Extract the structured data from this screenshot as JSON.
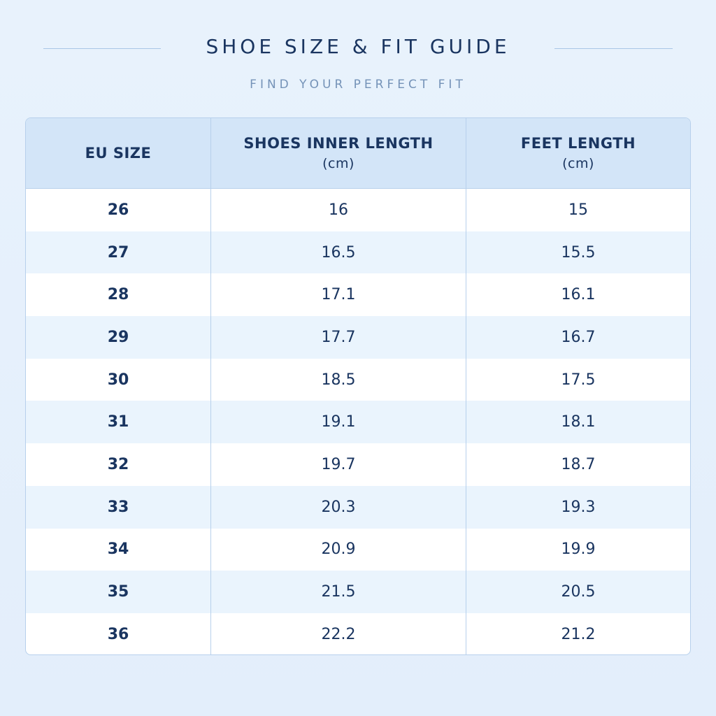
{
  "header": {
    "title": "SHOE SIZE & FIT GUIDE",
    "subtitle": "FIND YOUR PERFECT FIT"
  },
  "table": {
    "columns": [
      {
        "label": "EU SIZE"
      },
      {
        "label": "SHOES INNER LENGTH",
        "unit": "(cm)"
      },
      {
        "label": "FEET LENGTH",
        "unit": "(cm)"
      }
    ],
    "rows": [
      [
        "26",
        "16",
        "15"
      ],
      [
        "27",
        "16.5",
        "15.5"
      ],
      [
        "28",
        "17.1",
        "16.1"
      ],
      [
        "29",
        "17.7",
        "16.7"
      ],
      [
        "30",
        "18.5",
        "17.5"
      ],
      [
        "31",
        "19.1",
        "18.1"
      ],
      [
        "32",
        "19.7",
        "18.7"
      ],
      [
        "33",
        "20.3",
        "19.3"
      ],
      [
        "34",
        "20.9",
        "19.9"
      ],
      [
        "35",
        "21.5",
        "20.5"
      ],
      [
        "36",
        "22.2",
        "21.2"
      ]
    ]
  }
}
